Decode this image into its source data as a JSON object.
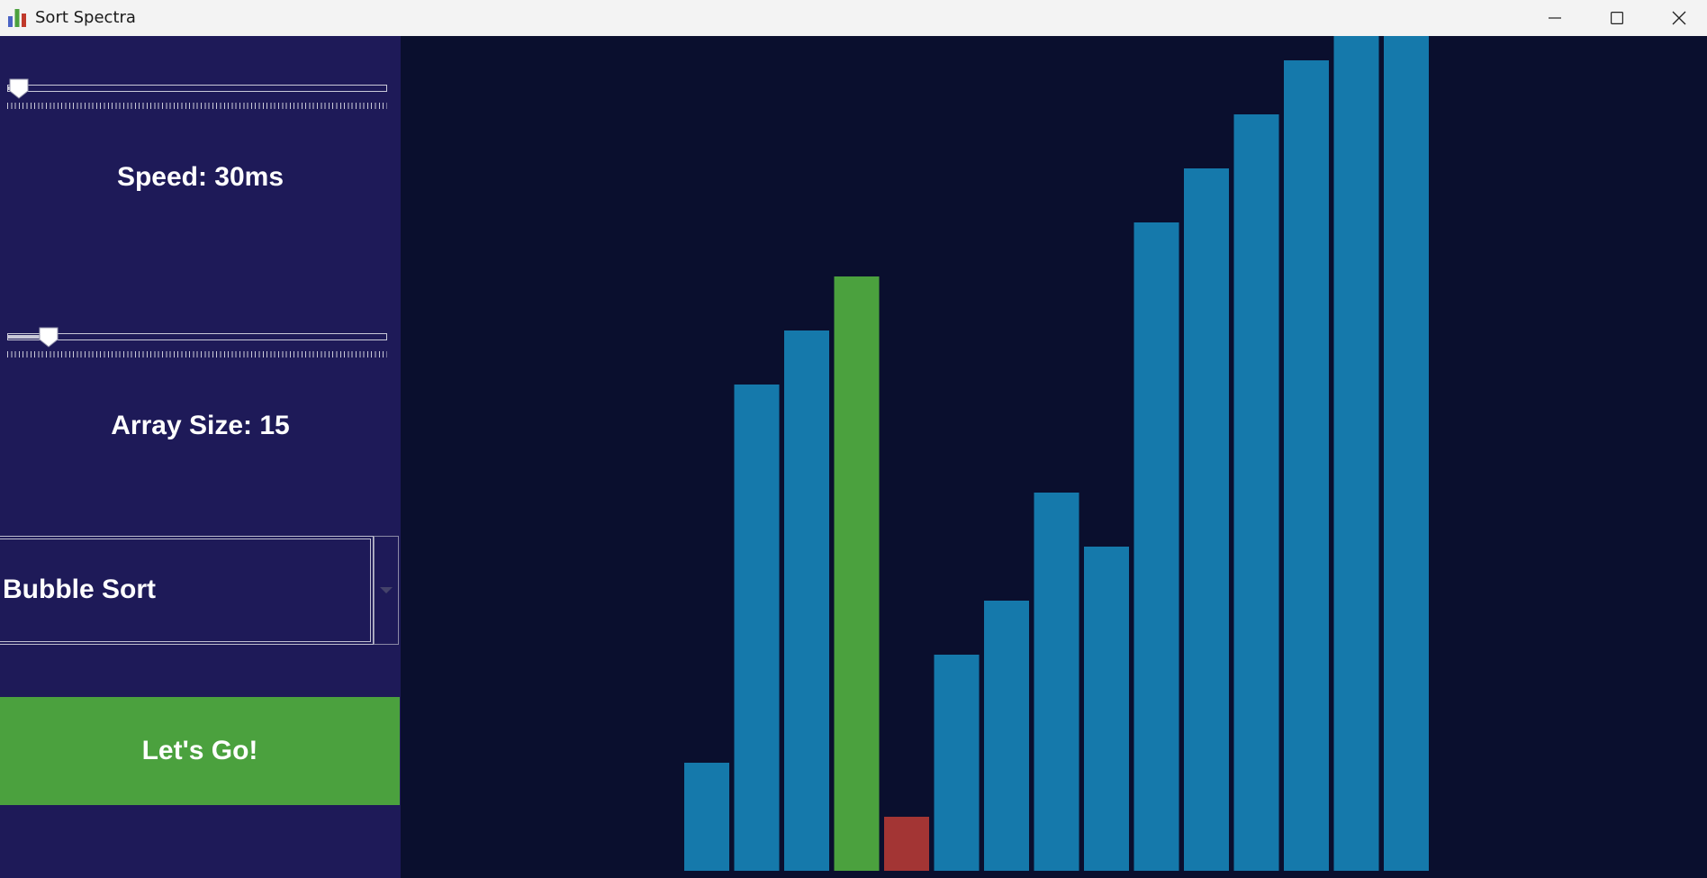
{
  "window": {
    "title": "Sort Spectra",
    "app_icon": "bar-chart-icon",
    "controls": [
      "minimize-icon",
      "maximize-icon",
      "close-icon"
    ]
  },
  "sidebar": {
    "speed_slider": {
      "value": 30,
      "min": 0,
      "max": 1000
    },
    "speed_label": "Speed: 30ms",
    "size_slider": {
      "value": 15,
      "min": 5,
      "max": 100
    },
    "size_label": "Array Size: 15",
    "algorithm_select": {
      "selected": "Bubble Sort"
    },
    "go_button_label": "Let's Go!"
  },
  "colors": {
    "sidebar_bg": "#1e1a58",
    "canvas_bg": "#0a0f2e",
    "bar_default": "#1579ab",
    "bar_compare": "#4ba13e",
    "bar_swap": "#a33534",
    "button_go": "#4ba13e"
  },
  "chart_data": {
    "type": "bar",
    "title": "",
    "values": [
      2,
      9,
      10,
      11,
      1,
      4,
      5,
      7,
      6,
      12,
      13,
      14,
      15,
      16,
      17
    ],
    "states": [
      "default",
      "default",
      "default",
      "compare",
      "swap",
      "default",
      "default",
      "default",
      "default",
      "default",
      "default",
      "default",
      "default",
      "default",
      "default"
    ],
    "ylim": [
      0,
      17
    ]
  }
}
